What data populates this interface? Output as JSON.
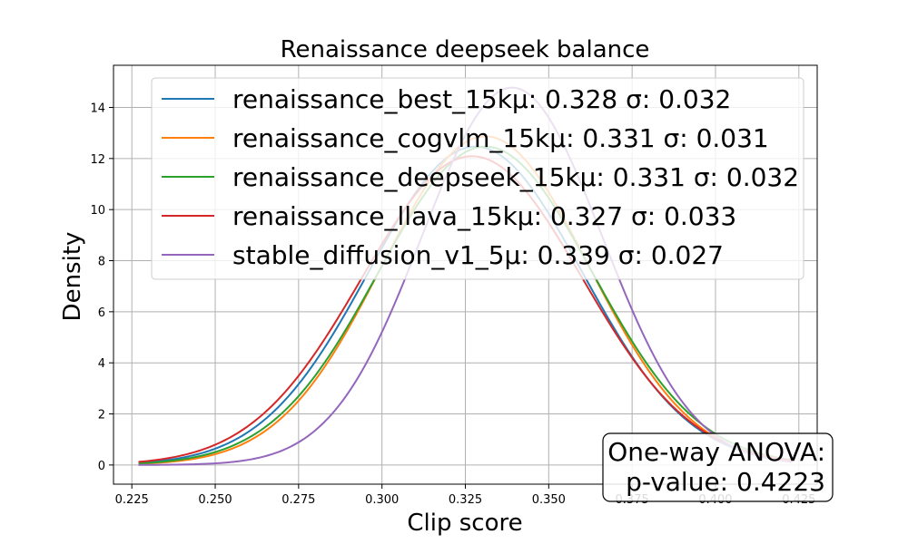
{
  "chart_data": {
    "type": "line",
    "title": "Renaissance deepseek balance",
    "xlabel": "Clip score",
    "ylabel": "Density",
    "xlim": [
      0.2195,
      0.4305
    ],
    "ylim": [
      -0.75,
      15.65
    ],
    "xticks": [
      0.225,
      0.25,
      0.275,
      0.3,
      0.325,
      0.35,
      0.375,
      0.4,
      0.425
    ],
    "xtick_labels": [
      "0.225",
      "0.250",
      "0.275",
      "0.300",
      "0.325",
      "0.350",
      "0.375",
      "0.400",
      "0.425"
    ],
    "yticks": [
      0,
      2,
      4,
      6,
      8,
      10,
      12,
      14
    ],
    "ytick_labels": [
      "0",
      "2",
      "4",
      "6",
      "8",
      "10",
      "12",
      "14"
    ],
    "grid": true,
    "legend_position": "top",
    "x_range": [
      0.227,
      0.423
    ],
    "series": [
      {
        "name": "renaissance_best_15kμ: 0.328 σ: 0.032",
        "mean": 0.328,
        "std": 0.032,
        "color": "#1f77b4"
      },
      {
        "name": "renaissance_cogvlm_15kμ: 0.331 σ: 0.031",
        "mean": 0.331,
        "std": 0.031,
        "color": "#ff7f0e"
      },
      {
        "name": "renaissance_deepseek_15kμ: 0.331 σ: 0.032",
        "mean": 0.331,
        "std": 0.032,
        "color": "#2ca02c"
      },
      {
        "name": "renaissance_llava_15kμ: 0.327 σ: 0.033",
        "mean": 0.327,
        "std": 0.033,
        "color": "#d62728"
      },
      {
        "name": "stable_diffusion_v1_5μ: 0.339 σ: 0.027",
        "mean": 0.339,
        "std": 0.027,
        "color": "#9467bd"
      }
    ],
    "annotation": {
      "line1": "One-way ANOVA:",
      "line2": "p-value: 0.4223"
    }
  }
}
